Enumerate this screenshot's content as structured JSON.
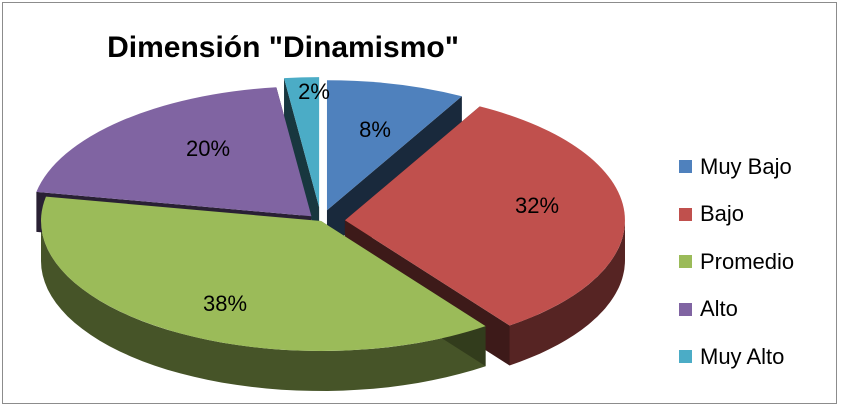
{
  "chart_data": {
    "type": "pie",
    "title": "Dimensión \"Dinamismo\"",
    "categories": [
      "Muy Bajo",
      "Bajo",
      "Promedio",
      "Alto",
      "Muy Alto"
    ],
    "values": [
      8,
      32,
      38,
      20,
      2
    ],
    "data_labels": [
      "8%",
      "32%",
      "38%",
      "20%",
      "2%"
    ],
    "colors": [
      "#4f81bd",
      "#c0504d",
      "#9bbb59",
      "#8064a2",
      "#4bacc6"
    ],
    "style": "3d-exploded",
    "legend": "right"
  }
}
